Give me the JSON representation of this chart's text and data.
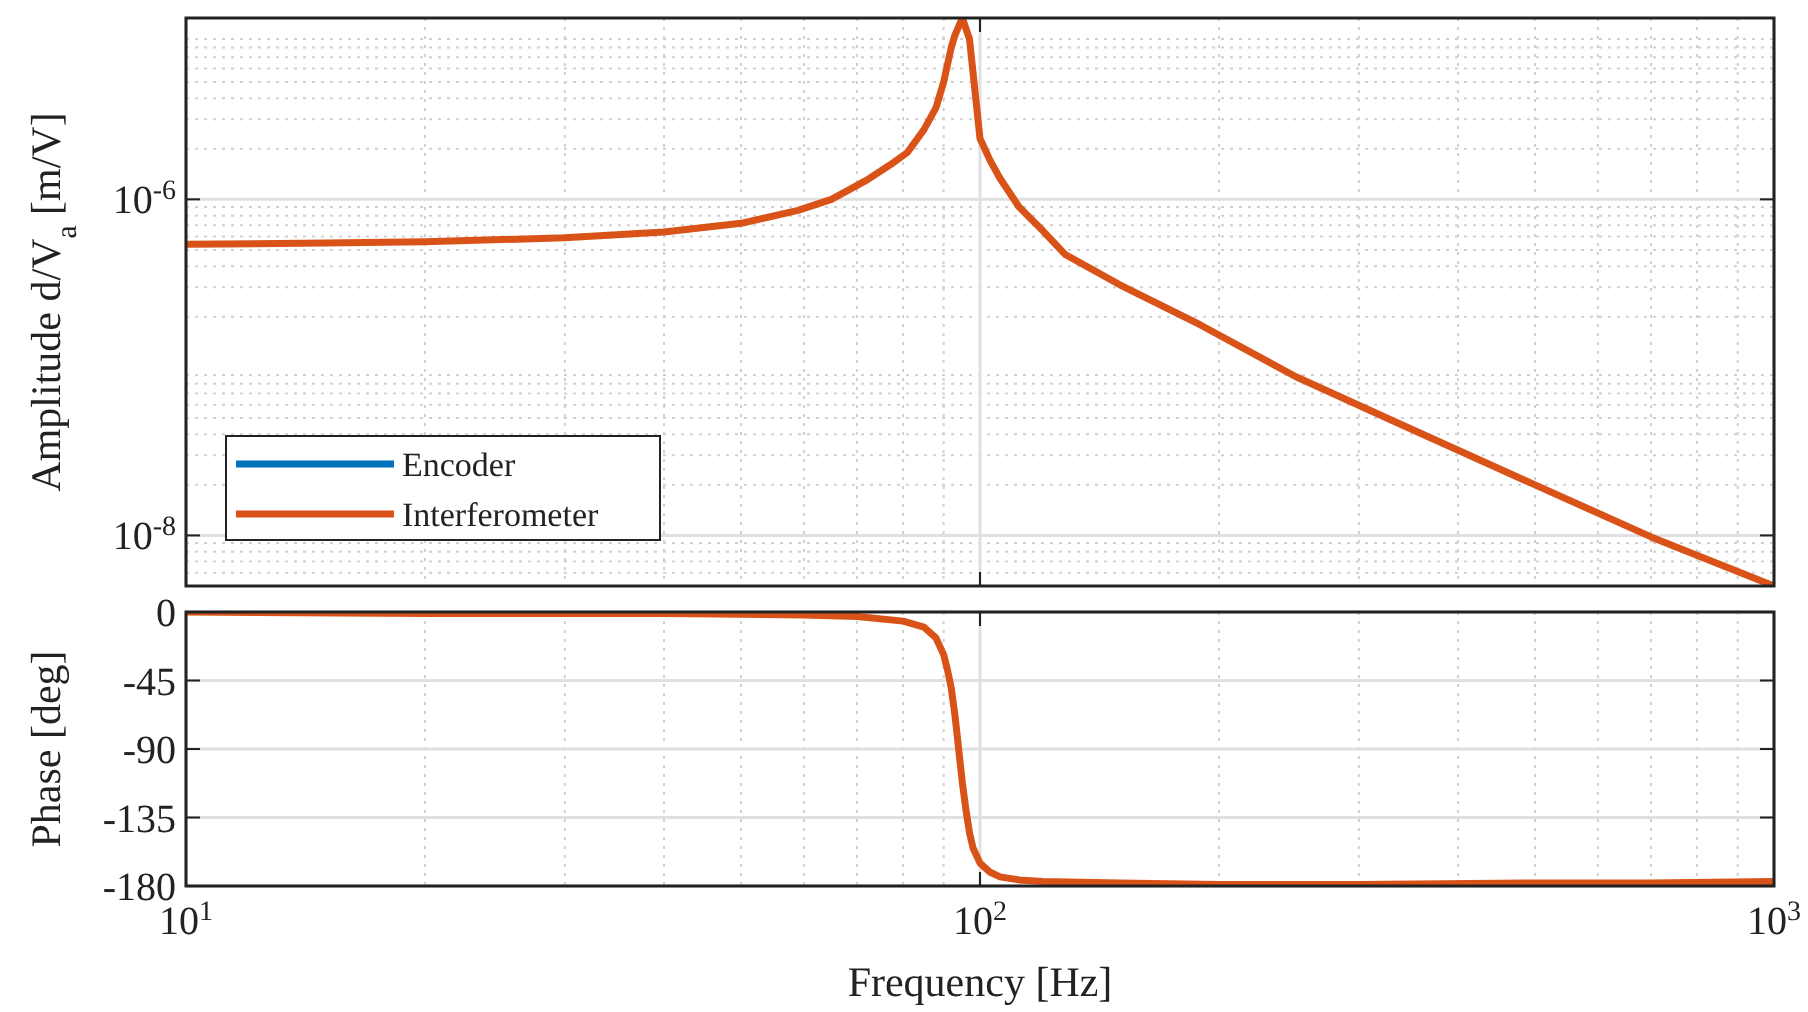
{
  "chart_data": [
    {
      "type": "line",
      "ylabel": "Amplitude d/V$_{a}$ [m/V]",
      "log": "xy",
      "grid": true,
      "legend": "bottom left",
      "tick_labels": "y",
      "line_style": "solid",
      "xlim": [
        10,
        1000
      ],
      "xticks": [
        10,
        100,
        1000
      ],
      "ylim": [
        5e-09,
        1.2e-05
      ],
      "yticks": [
        {
          "value": 1e-08,
          "label": "10$^{-8}$"
        },
        {
          "value": 1e-06,
          "label": "10$^{-6}$"
        }
      ],
      "x": [
        10,
        15,
        20,
        30,
        40,
        50,
        59,
        65,
        72,
        77,
        81,
        85,
        88,
        90,
        92,
        93,
        95,
        97,
        100,
        103,
        106,
        112,
        120,
        128,
        150,
        189,
        250,
        338,
        500,
        700,
        1000
      ],
      "series": [
        {
          "name": "Encoder",
          "color": "#0072bd",
          "values": [
            null,
            null,
            null,
            null,
            null,
            null,
            null,
            null,
            null,
            null,
            null,
            null,
            null,
            null,
            null,
            null,
            null,
            null,
            null,
            null,
            null,
            null,
            null,
            null,
            null,
            null,
            null,
            null,
            null,
            null,
            null
          ]
        },
        {
          "name": "Interferometer",
          "color": "#d95319",
          "values": [
            5.4e-07,
            5.5e-07,
            5.6e-07,
            5.9e-07,
            6.4e-07,
            7.2e-07,
            8.6e-07,
            1e-06,
            1.3e-06,
            1.6e-06,
            1.9e-06,
            2.6e-06,
            3.5e-06,
            5e-06,
            8e-06,
            9.5e-06,
            1.2e-05,
            9e-06,
            2.3e-06,
            1.7e-06,
            1.33e-06,
            9e-07,
            6.5e-07,
            4.7e-07,
            3.1e-07,
            1.8e-07,
            8.8e-08,
            4.6e-08,
            2e-08,
            9.8e-09,
            5e-09
          ]
        }
      ]
    },
    {
      "type": "line",
      "xlabel": "Frequency [Hz]",
      "ylabel": "Phase [deg]",
      "log": "x",
      "grid": true,
      "line_style": "solid",
      "xlim": [
        10,
        1000
      ],
      "xticks": [
        {
          "value": 10,
          "label": "10$^{1}$"
        },
        {
          "value": 100,
          "label": "10$^{2}$"
        },
        {
          "value": 1000,
          "label": "10$^{3}$"
        }
      ],
      "ylim": [
        -180,
        0
      ],
      "yticks": [
        -180,
        -135,
        -90,
        -45,
        0
      ],
      "x": [
        10,
        20,
        40,
        60,
        70,
        80,
        85,
        88,
        90,
        91,
        92,
        93,
        94,
        95,
        96,
        97,
        98,
        100,
        103,
        106,
        112,
        120,
        150,
        200,
        300,
        500,
        700,
        1000
      ],
      "series": [
        {
          "color": "#d95319",
          "values": [
            0,
            -1,
            -1,
            -2,
            -3,
            -6,
            -10,
            -17,
            -28,
            -38,
            -50,
            -68,
            -90,
            -112,
            -130,
            -145,
            -155,
            -165,
            -171,
            -174,
            -176,
            -177,
            -178,
            -179,
            -179,
            -178,
            -178,
            -177
          ]
        }
      ]
    }
  ]
}
